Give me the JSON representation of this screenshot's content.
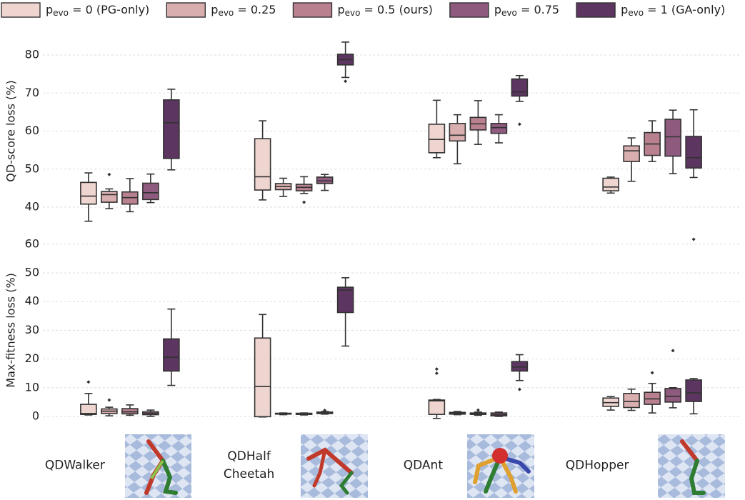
{
  "chart_data": [
    {
      "type": "box",
      "ylabel": "QD-score loss (%)",
      "ylim": [
        36,
        84
      ],
      "yticks": [
        40,
        50,
        60,
        70,
        80
      ],
      "grid": true,
      "series": [
        {
          "name": "pevo = 0 (PG-only)",
          "color": "#efd5d0",
          "values": [
            {
              "whislo": 36.3,
              "q1": 40.8,
              "med": 42.9,
              "q3": 46.5,
              "whishi": 49.0,
              "fliers": []
            },
            {
              "whislo": 41.9,
              "q1": 44.5,
              "med": 48.0,
              "q3": 58.0,
              "whishi": 62.7,
              "fliers": []
            },
            {
              "whislo": 53.0,
              "q1": 54.3,
              "med": 57.8,
              "q3": 61.8,
              "whishi": 68.1,
              "fliers": []
            },
            {
              "whislo": 43.7,
              "q1": 44.3,
              "med": 45.3,
              "q3": 47.6,
              "whishi": 47.9,
              "fliers": []
            }
          ]
        },
        {
          "name": "pevo = 0.25",
          "color": "#d9aeae",
          "values": [
            {
              "whislo": 39.6,
              "q1": 41.3,
              "med": 43.3,
              "q3": 44.1,
              "whishi": 44.8,
              "fliers": [
                48.6
              ]
            },
            {
              "whislo": 42.8,
              "q1": 44.6,
              "med": 45.4,
              "q3": 46.2,
              "whishi": 47.6,
              "fliers": []
            },
            {
              "whislo": 51.4,
              "q1": 57.4,
              "med": 58.9,
              "q3": 62.0,
              "whishi": 64.3,
              "fliers": []
            },
            {
              "whislo": 46.8,
              "q1": 52.0,
              "med": 54.8,
              "q3": 56.1,
              "whishi": 58.2,
              "fliers": []
            }
          ]
        },
        {
          "name": "pevo = 0.5 (ours)",
          "color": "#b9818f",
          "values": [
            {
              "whislo": 38.8,
              "q1": 40.8,
              "med": 42.5,
              "q3": 44.0,
              "whishi": 47.5,
              "fliers": []
            },
            {
              "whislo": 43.6,
              "q1": 44.3,
              "med": 45.2,
              "q3": 46.0,
              "whishi": 48.0,
              "fliers": [
                41.3
              ]
            },
            {
              "whislo": 56.5,
              "q1": 60.3,
              "med": 61.9,
              "q3": 63.6,
              "whishi": 68.0,
              "fliers": []
            },
            {
              "whislo": 52.0,
              "q1": 53.6,
              "med": 56.6,
              "q3": 59.6,
              "whishi": 62.7,
              "fliers": []
            }
          ]
        },
        {
          "name": "pevo = 0.75",
          "color": "#8e5a7e",
          "values": [
            {
              "whislo": 41.2,
              "q1": 42.0,
              "med": 43.8,
              "q3": 46.3,
              "whishi": 48.7,
              "fliers": []
            },
            {
              "whislo": 44.4,
              "q1": 46.2,
              "med": 46.9,
              "q3": 47.9,
              "whishi": 48.6,
              "fliers": []
            },
            {
              "whislo": 56.9,
              "q1": 59.4,
              "med": 60.9,
              "q3": 62.0,
              "whishi": 64.3,
              "fliers": []
            },
            {
              "whislo": 48.8,
              "q1": 53.4,
              "med": 58.5,
              "q3": 63.1,
              "whishi": 65.5,
              "fliers": []
            }
          ]
        },
        {
          "name": "pevo = 1 (GA-only)",
          "color": "#5c3560",
          "values": [
            {
              "whislo": 49.8,
              "q1": 52.8,
              "med": 62.2,
              "q3": 68.2,
              "whishi": 71.0,
              "fliers": []
            },
            {
              "whislo": 74.1,
              "q1": 77.4,
              "med": 78.8,
              "q3": 80.2,
              "whishi": 83.4,
              "fliers": [
                73.1
              ]
            },
            {
              "whislo": 67.8,
              "q1": 69.2,
              "med": 70.3,
              "q3": 73.7,
              "whishi": 74.6,
              "fliers": [
                61.8
              ]
            },
            {
              "whislo": 47.8,
              "q1": 50.3,
              "med": 53.0,
              "q3": 58.6,
              "whishi": 65.6,
              "fliers": []
            }
          ]
        }
      ]
    },
    {
      "type": "box",
      "ylabel": "Max-fitness loss (%)",
      "ylim": [
        -2,
        62
      ],
      "yticks": [
        0,
        10,
        20,
        30,
        40,
        50,
        60
      ],
      "grid": true,
      "categories": [
        "QDWalker",
        "QDHalf\nCheetah",
        "QDAnt",
        "QDHopper"
      ],
      "series": [
        {
          "color": "#efd5d0",
          "values": [
            {
              "whislo": 0.5,
              "q1": 0.7,
              "med": 1.0,
              "q3": 4.2,
              "whishi": 8.0,
              "fliers": [
                12.0
              ]
            },
            {
              "whislo": -0.2,
              "q1": -0.1,
              "med": 10.4,
              "q3": 27.3,
              "whishi": 35.5,
              "fliers": []
            },
            {
              "whislo": -0.7,
              "q1": 0.7,
              "med": 5.4,
              "q3": 5.7,
              "whishi": 5.9,
              "fliers": [
                15.0,
                16.5
              ]
            },
            {
              "whislo": 2.2,
              "q1": 3.5,
              "med": 4.8,
              "q3": 6.4,
              "whishi": 6.9,
              "fliers": []
            }
          ]
        },
        {
          "color": "#d9aeae",
          "values": [
            {
              "whislo": 0.2,
              "q1": 1.0,
              "med": 1.8,
              "q3": 2.6,
              "whishi": 3.2,
              "fliers": [
                5.7
              ]
            },
            {
              "whislo": 0.6,
              "q1": 0.8,
              "med": 1.0,
              "q3": 1.1,
              "whishi": 1.2,
              "fliers": []
            },
            {
              "whislo": 0.6,
              "q1": 0.8,
              "med": 1.1,
              "q3": 1.4,
              "whishi": 1.7,
              "fliers": []
            },
            {
              "whislo": 2.1,
              "q1": 3.1,
              "med": 5.2,
              "q3": 8.0,
              "whishi": 9.5,
              "fliers": []
            }
          ]
        },
        {
          "color": "#b9818f",
          "values": [
            {
              "whislo": 0.4,
              "q1": 0.9,
              "med": 1.6,
              "q3": 2.7,
              "whishi": 4.0,
              "fliers": []
            },
            {
              "whislo": 0.5,
              "q1": 0.7,
              "med": 0.9,
              "q3": 1.1,
              "whishi": 1.2,
              "fliers": []
            },
            {
              "whislo": 0.4,
              "q1": 0.7,
              "med": 0.9,
              "q3": 1.2,
              "whishi": 1.5,
              "fliers": [
                2.2
              ]
            },
            {
              "whislo": 1.2,
              "q1": 4.2,
              "med": 6.1,
              "q3": 8.4,
              "whishi": 11.5,
              "fliers": [
                15.2
              ]
            }
          ]
        },
        {
          "color": "#8e5a7e",
          "values": [
            {
              "whislo": 0.0,
              "q1": 0.6,
              "med": 1.1,
              "q3": 1.6,
              "whishi": 2.2,
              "fliers": []
            },
            {
              "whislo": 0.8,
              "q1": 1.0,
              "med": 1.2,
              "q3": 1.5,
              "whishi": 1.7,
              "fliers": [
                2.1
              ]
            },
            {
              "whislo": 0.0,
              "q1": 0.2,
              "med": 0.6,
              "q3": 1.2,
              "whishi": 1.5,
              "fliers": []
            },
            {
              "whislo": 3.0,
              "q1": 5.0,
              "med": 7.0,
              "q3": 9.7,
              "whishi": 10.0,
              "fliers": [
                22.9
              ]
            }
          ]
        },
        {
          "color": "#5c3560",
          "values": [
            {
              "whislo": 10.8,
              "q1": 15.8,
              "med": 20.6,
              "q3": 27.0,
              "whishi": 37.4,
              "fliers": []
            },
            {
              "whislo": 24.5,
              "q1": 36.2,
              "med": 44.0,
              "q3": 45.0,
              "whishi": 48.3,
              "fliers": []
            },
            {
              "whislo": 12.5,
              "q1": 15.8,
              "med": 17.2,
              "q3": 19.1,
              "whishi": 21.5,
              "fliers": [
                9.4
              ]
            },
            {
              "whislo": 0.9,
              "q1": 5.2,
              "med": 8.2,
              "q3": 12.7,
              "whishi": 13.2,
              "fliers": [
                61.7
              ]
            }
          ]
        }
      ]
    }
  ]
}
